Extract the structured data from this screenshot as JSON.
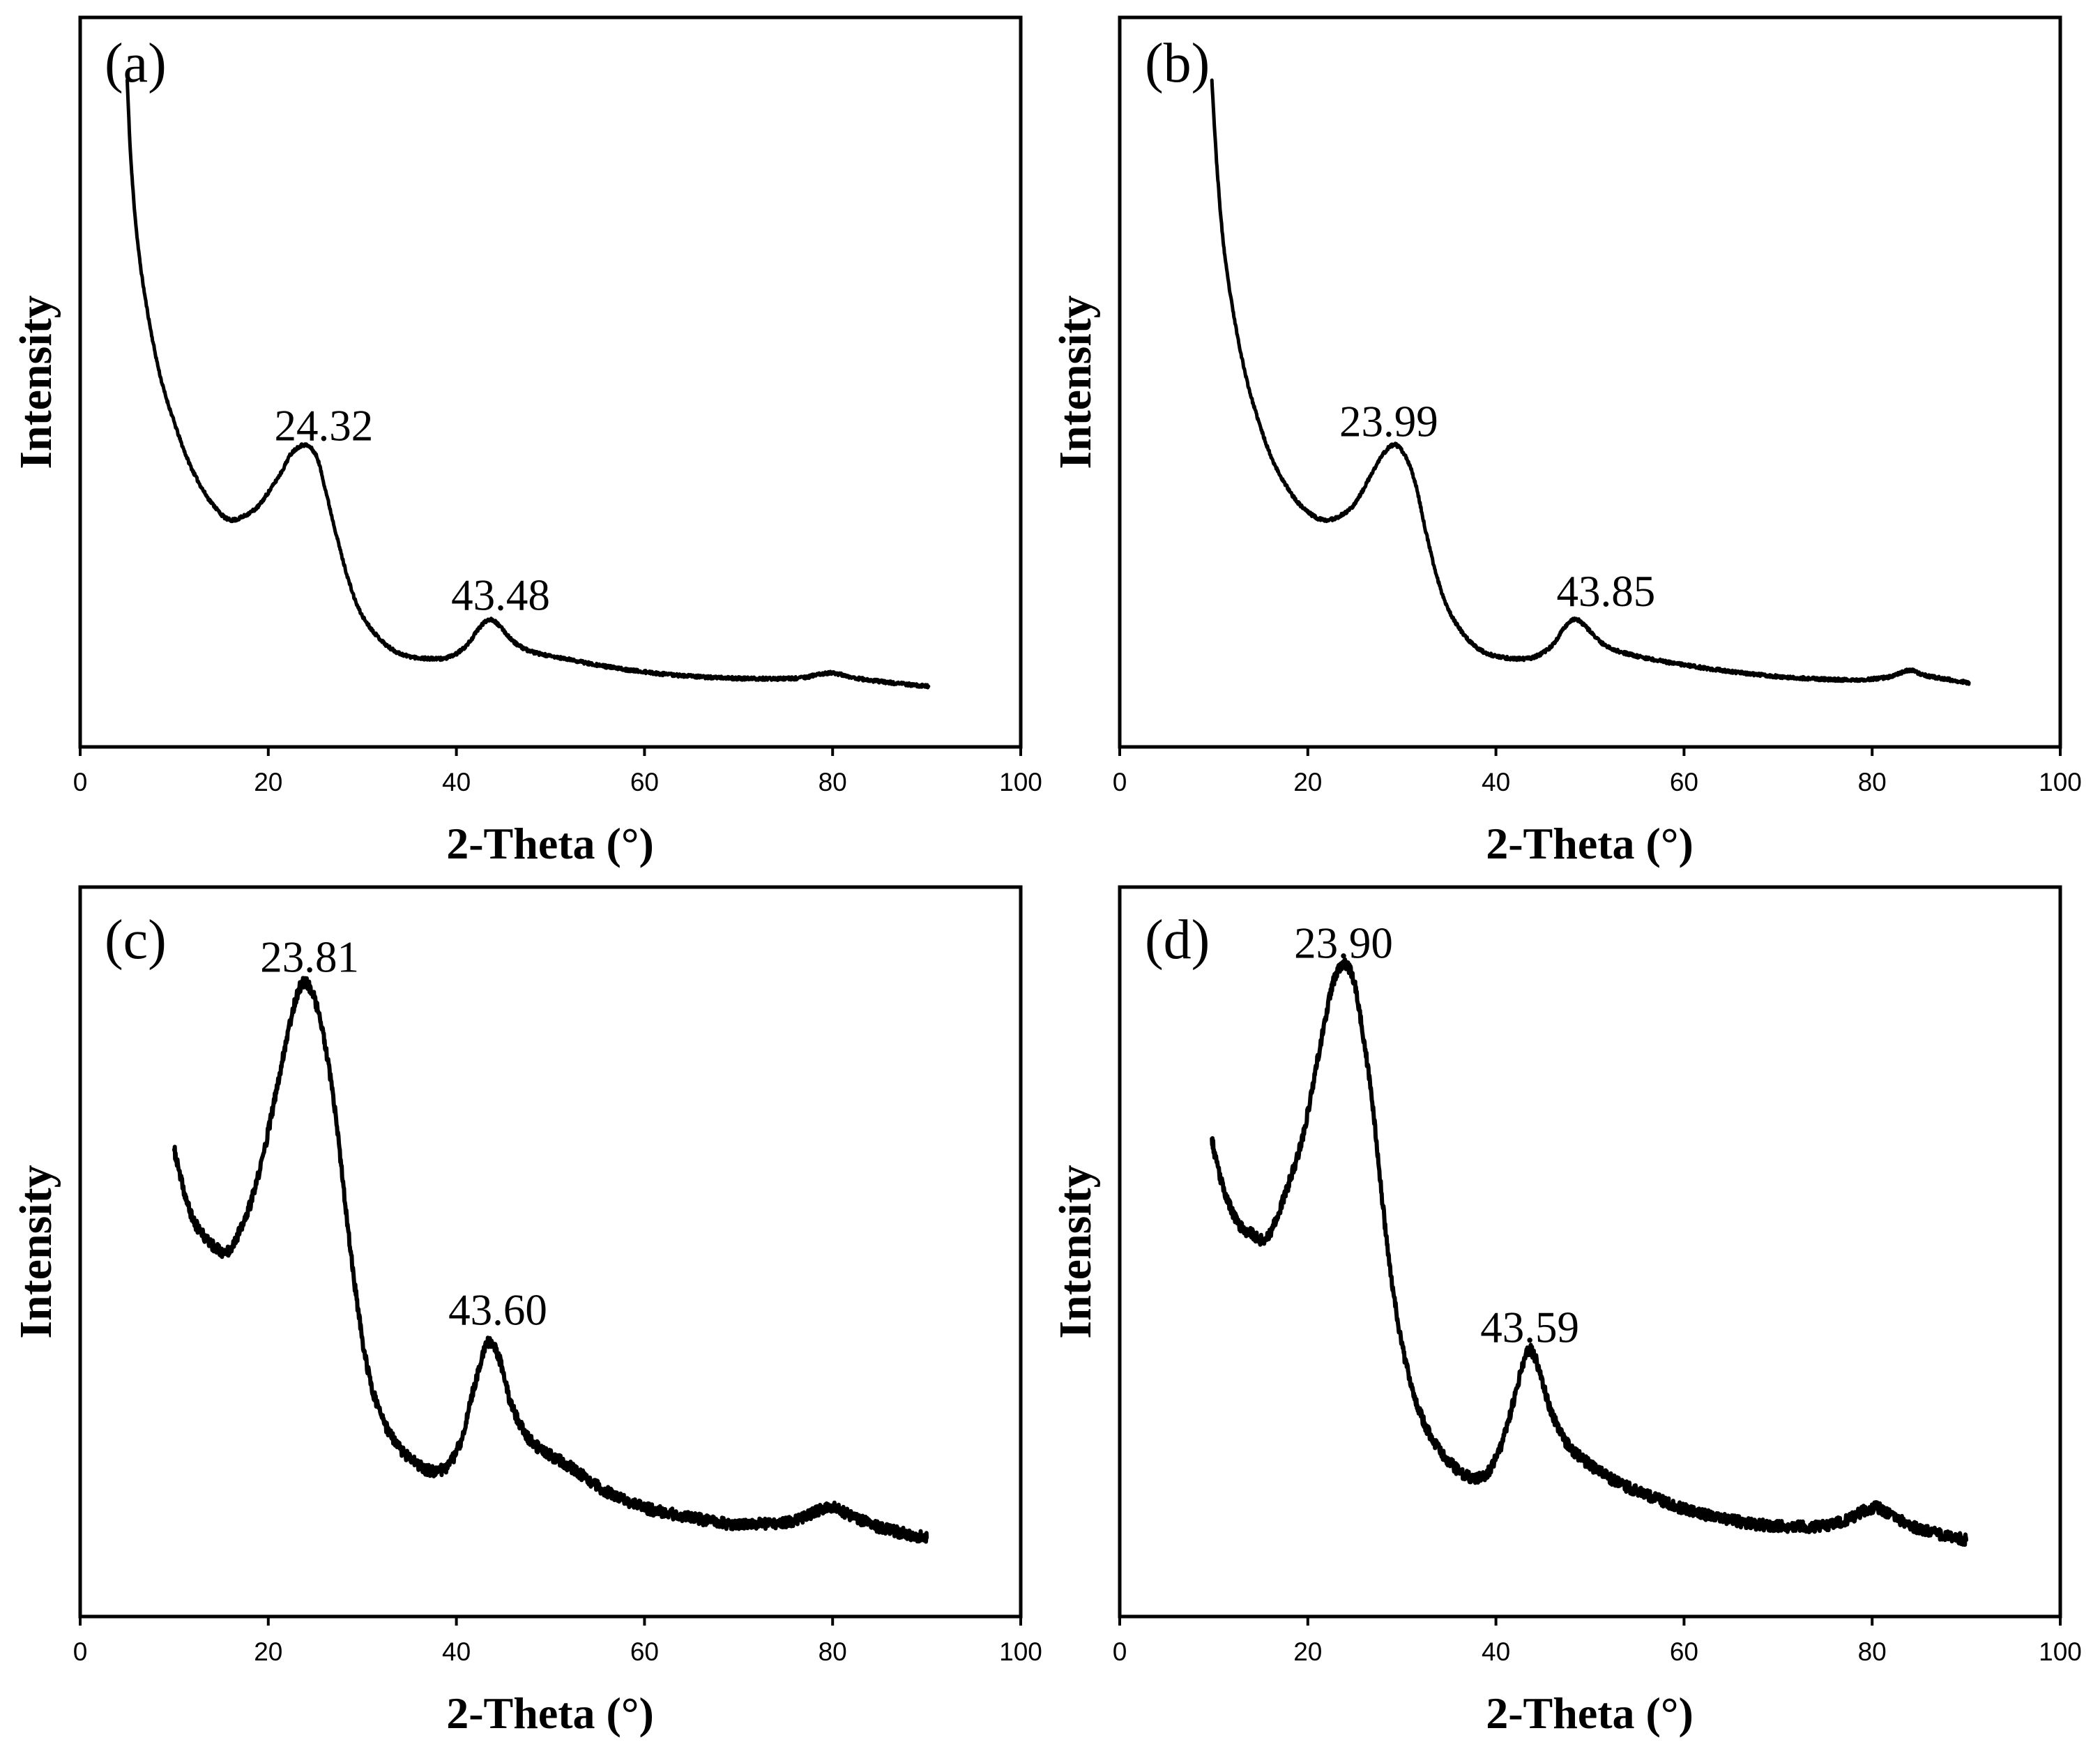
{
  "colors": {
    "line": "#000000",
    "frame": "#000000",
    "background": "#ffffff"
  },
  "chart_data": [
    {
      "panel": "(a)",
      "type": "line",
      "title": "",
      "xlabel": "2-Theta (°)",
      "ylabel": "Intensity",
      "xlim": [
        0,
        100
      ],
      "ylim": [
        0,
        100
      ],
      "xticks": [
        0,
        20,
        40,
        60,
        80,
        100
      ],
      "xtick_labels": [
        "0",
        "20",
        "40",
        "60",
        "80",
        "100"
      ],
      "grid": false,
      "series": [
        {
          "x": [
            5.0,
            5.4,
            6.1,
            7.1,
            8.5,
            10.0,
            11.4,
            12.8,
            14.2,
            16.0,
            18.5,
            19.9,
            21.4,
            22.5,
            23.9,
            25.1,
            25.9,
            27.1,
            28.5,
            29.9,
            32.1,
            34.2,
            37.0,
            39.2,
            41.0,
            42.5,
            43.6,
            44.7,
            46.3,
            48.4,
            52.7,
            57.0,
            62.7,
            69.8,
            76.2,
            78.3,
            80.1,
            82.6,
            86.2,
            90.2
          ],
          "y": [
            91.4,
            80.3,
            69.3,
            60.1,
            50.9,
            44.5,
            39.5,
            35.8,
            33.1,
            31.1,
            32.5,
            34.7,
            37.7,
            40.3,
            41.4,
            39.9,
            36.2,
            29.8,
            23.0,
            18.2,
            14.5,
            12.7,
            12.1,
            12.3,
            13.8,
            16.4,
            17.5,
            16.4,
            14.2,
            12.9,
            11.8,
            10.8,
            9.9,
            9.4,
            9.4,
            9.9,
            10.1,
            9.4,
            8.8,
            8.3
          ]
        }
      ],
      "annotations": [
        {
          "text": "24.32",
          "x": 25.9,
          "y": 42.0
        },
        {
          "text": "43.48",
          "x": 44.7,
          "y": 18.8
        }
      ]
    },
    {
      "panel": "(b)",
      "type": "line",
      "title": "",
      "xlabel": "2-Theta (°)",
      "ylabel": "Intensity",
      "xlim": [
        0,
        100
      ],
      "ylim": [
        0,
        100
      ],
      "xticks": [
        0,
        20,
        40,
        60,
        80,
        100
      ],
      "xtick_labels": [
        "0",
        "20",
        "40",
        "60",
        "80",
        "100"
      ],
      "grid": false,
      "series": [
        {
          "x": [
            9.8,
            10.3,
            11.0,
            12.0,
            13.4,
            14.8,
            16.2,
            17.7,
            19.4,
            21.7,
            24.1,
            25.5,
            26.9,
            28.1,
            29.3,
            30.5,
            31.5,
            32.5,
            33.8,
            35.2,
            37.2,
            39.3,
            41.9,
            44.0,
            45.9,
            47.3,
            48.4,
            49.6,
            51.3,
            53.6,
            58.3,
            64.0,
            70.4,
            77.5,
            81.8,
            83.9,
            86.0,
            90.3
          ],
          "y": [
            91.4,
            80.3,
            69.3,
            60.1,
            50.9,
            44.5,
            39.5,
            35.8,
            32.9,
            31.1,
            32.2,
            34.4,
            37.7,
            40.3,
            41.4,
            39.5,
            35.8,
            29.8,
            23.0,
            18.2,
            14.5,
            12.7,
            12.1,
            12.3,
            13.8,
            16.4,
            17.5,
            16.4,
            14.2,
            12.9,
            11.6,
            10.5,
            9.6,
            9.2,
            9.6,
            10.5,
            9.7,
            8.8
          ]
        }
      ],
      "annotations": [
        {
          "text": "23.99",
          "x": 28.6,
          "y": 42.6
        },
        {
          "text": "43.85",
          "x": 51.7,
          "y": 19.3
        }
      ]
    },
    {
      "panel": "(c)",
      "type": "line",
      "title": "",
      "xlabel": "2-Theta (°)",
      "ylabel": "Intensity",
      "xlim": [
        0,
        100
      ],
      "ylim": [
        0,
        100
      ],
      "xticks": [
        0,
        20,
        40,
        60,
        80,
        100
      ],
      "xtick_labels": [
        "0",
        "20",
        "40",
        "60",
        "80",
        "100"
      ],
      "grid": false,
      "series": [
        {
          "x": [
            10.0,
            10.7,
            11.7,
            12.8,
            14.2,
            15.4,
            16.5,
            17.8,
            19.2,
            20.7,
            22.1,
            23.1,
            23.9,
            24.9,
            25.9,
            27.1,
            28.2,
            29.3,
            30.5,
            31.9,
            33.6,
            35.6,
            37.3,
            39.0,
            40.5,
            41.9,
            43.0,
            43.7,
            44.6,
            45.7,
            47.3,
            49.1,
            52.0,
            55.6,
            59.8,
            64.1,
            68.4,
            72.6,
            76.2,
            78.3,
            80.1,
            81.9,
            84.8,
            87.6,
            90.0
          ],
          "y": [
            64.0,
            60.0,
            55.4,
            52.7,
            50.8,
            49.9,
            51.7,
            55.4,
            61.8,
            71.0,
            80.2,
            85.3,
            87.0,
            84.8,
            79.3,
            69.2,
            56.3,
            44.4,
            34.3,
            27.9,
            23.7,
            21.1,
            20.0,
            20.6,
            24.2,
            31.6,
            36.5,
            37.6,
            35.2,
            29.7,
            25.1,
            22.8,
            20.6,
            17.4,
            15.0,
            13.8,
            12.8,
            12.7,
            13.2,
            14.5,
            15.0,
            13.8,
            12.3,
            11.4,
            10.8
          ]
        }
      ],
      "annotations": [
        {
          "text": "23.81",
          "x": 24.4,
          "y": 88.4
        },
        {
          "text": "43.60",
          "x": 44.4,
          "y": 40.0
        }
      ]
    },
    {
      "panel": "(d)",
      "type": "line",
      "title": "",
      "xlabel": "2-Theta (°)",
      "ylabel": "Intensity",
      "xlim": [
        0,
        100
      ],
      "ylim": [
        0,
        100
      ],
      "xticks": [
        0,
        20,
        40,
        60,
        80,
        100
      ],
      "xtick_labels": [
        "0",
        "20",
        "40",
        "60",
        "80",
        "100"
      ],
      "grid": false,
      "series": [
        {
          "x": [
            9.8,
            10.5,
            11.7,
            12.8,
            14.2,
            15.4,
            16.5,
            17.9,
            19.4,
            20.8,
            22.2,
            23.1,
            23.9,
            24.8,
            25.6,
            26.8,
            27.9,
            29.0,
            30.2,
            31.6,
            33.3,
            35.5,
            37.3,
            39.0,
            40.5,
            41.9,
            43.0,
            43.7,
            44.6,
            45.7,
            47.3,
            49.3,
            52.5,
            56.8,
            61.7,
            67.4,
            73.1,
            76.7,
            79.2,
            80.6,
            82.4,
            85.3,
            90.0
          ],
          "y": [
            65.5,
            61.0,
            56.3,
            53.6,
            52.3,
            51.7,
            54.1,
            59.1,
            65.5,
            74.7,
            84.2,
            88.4,
            89.4,
            87.5,
            82.0,
            71.0,
            57.2,
            45.3,
            36.1,
            29.2,
            24.2,
            20.6,
            19.1,
            19.6,
            23.3,
            29.7,
            35.2,
            36.5,
            33.9,
            28.8,
            24.2,
            21.5,
            18.7,
            16.3,
            14.1,
            12.7,
            12.3,
            13.0,
            14.5,
            14.9,
            13.6,
            11.9,
            10.5
          ]
        }
      ],
      "annotations": [
        {
          "text": "23.90",
          "x": 23.8,
          "y": 90.3
        },
        {
          "text": "43.59",
          "x": 43.6,
          "y": 37.6
        }
      ]
    }
  ]
}
